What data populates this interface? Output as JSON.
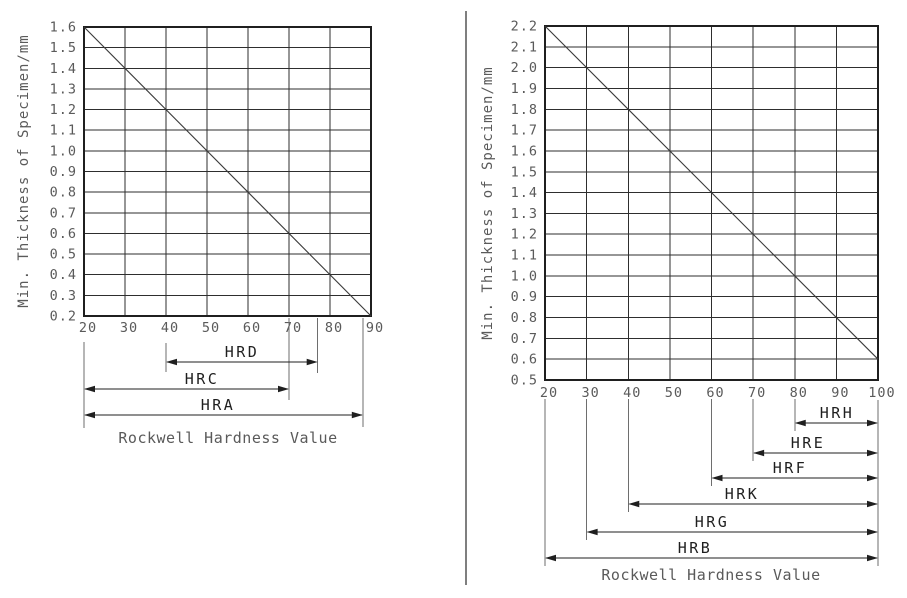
{
  "colors": {
    "grid": "#2e2e2e",
    "border": "#1f1f1f",
    "diagonal": "#3a3a3a",
    "tick_text": "#5a5a5a",
    "axis_title_text": "#5a5a5a",
    "range_label_text": "#1f1f1f",
    "dimension_line": "#1f1f1f",
    "extension_line": "#6e6e6e",
    "divider": "#7f7f7f",
    "background": "#ffffff"
  },
  "divider": {
    "orientation": "vertical"
  },
  "chart_data": [
    {
      "type": "line",
      "title": "",
      "xlabel": "Rockwell Hardness Value",
      "ylabel": "Min. Thickness of Specimen/mm",
      "xlim": [
        20,
        90
      ],
      "ylim": [
        0.2,
        1.6
      ],
      "x_ticks": [
        20,
        30,
        40,
        50,
        60,
        70,
        80,
        90
      ],
      "y_ticks": [
        1.6,
        1.5,
        1.4,
        1.3,
        1.2,
        1.1,
        1.0,
        0.9,
        0.8,
        0.7,
        0.6,
        0.5,
        0.4,
        0.3,
        0.2
      ],
      "grid": true,
      "legend": "none",
      "series": [
        {
          "name": "min-thickness-diagonal",
          "points": [
            [
              20,
              1.6
            ],
            [
              90,
              0.2
            ]
          ]
        }
      ],
      "scale_ranges": [
        {
          "label": "HRD",
          "from": 40,
          "to": 77
        },
        {
          "label": "HRC",
          "from": 20,
          "to": 70
        },
        {
          "label": "HRA",
          "from": 20,
          "to": 88
        }
      ]
    },
    {
      "type": "line",
      "title": "",
      "xlabel": "Rockwell Hardness Value",
      "ylabel": "Min. Thickness of Specimen/mm",
      "xlim": [
        20,
        100
      ],
      "ylim": [
        0.5,
        2.2
      ],
      "x_ticks": [
        20,
        30,
        40,
        50,
        60,
        70,
        80,
        90,
        100
      ],
      "y_ticks": [
        2.2,
        2.1,
        2.0,
        1.9,
        1.8,
        1.7,
        1.6,
        1.5,
        1.4,
        1.3,
        1.2,
        1.1,
        1.0,
        0.9,
        0.8,
        0.7,
        0.6,
        0.5
      ],
      "grid": true,
      "legend": "none",
      "series": [
        {
          "name": "min-thickness-diagonal",
          "points": [
            [
              20,
              2.2
            ],
            [
              100,
              0.6
            ]
          ]
        }
      ],
      "scale_ranges": [
        {
          "label": "HRH",
          "from": 80,
          "to": 100
        },
        {
          "label": "HRE",
          "from": 70,
          "to": 100
        },
        {
          "label": "HRF",
          "from": 60,
          "to": 100
        },
        {
          "label": "HRK",
          "from": 40,
          "to": 100
        },
        {
          "label": "HRG",
          "from": 30,
          "to": 100
        },
        {
          "label": "HRB",
          "from": 20,
          "to": 100
        }
      ]
    }
  ]
}
